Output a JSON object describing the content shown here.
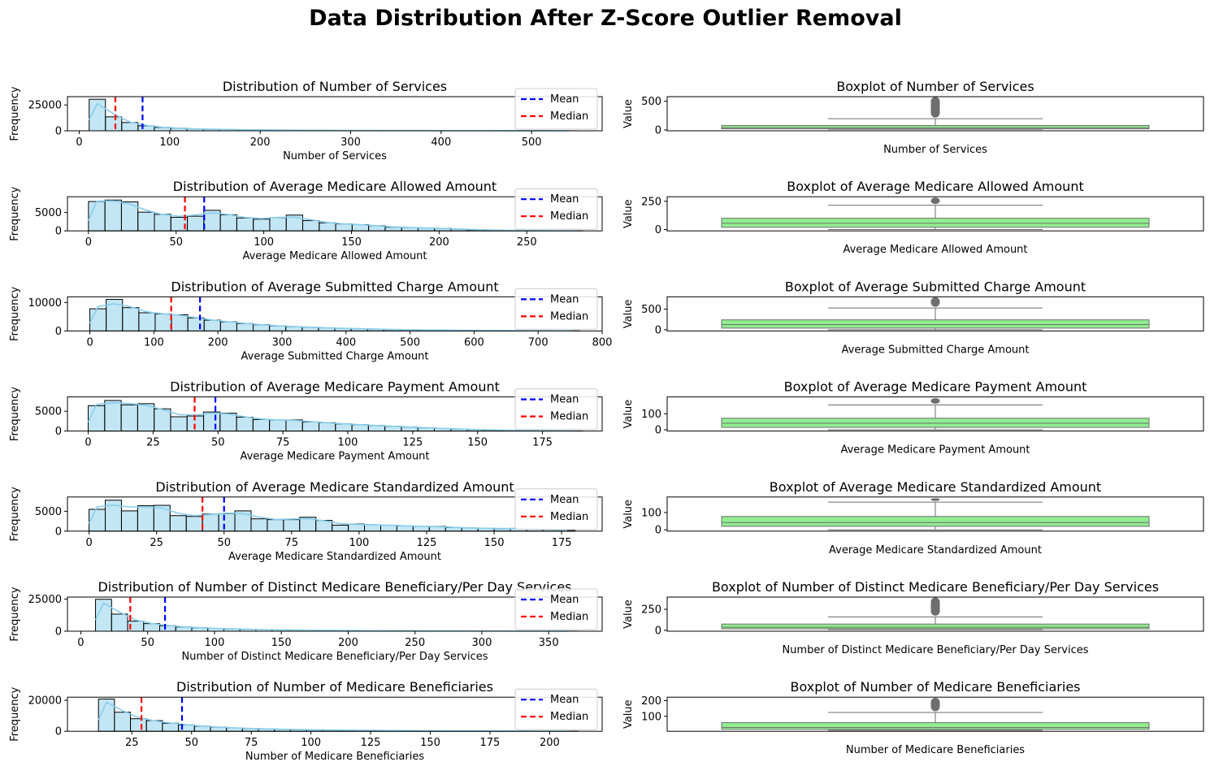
{
  "figure": {
    "title": "Data Distribution After Z-Score Outlier Removal"
  },
  "colors": {
    "hist_fill": "#87ceeb",
    "kde_line": "#87ceeb",
    "mean_line": "#0000ff",
    "median_line": "#ff0000",
    "box_fill": "#90ee90",
    "box_edge": "#6e6e6e",
    "flier": "#6e6e6e"
  },
  "legend": {
    "mean": "Mean",
    "median": "Median"
  },
  "chart_data": [
    {
      "type": "bar",
      "title": "Distribution of Number of Services",
      "xlabel": "Number of Services",
      "ylabel": "Frequency",
      "xlim": [
        -13,
        578
      ],
      "ylim": [
        0,
        33000
      ],
      "xticks": [
        0,
        100,
        200,
        300,
        400,
        500
      ],
      "yticks": [
        0,
        25000
      ],
      "bins": {
        "start": 11,
        "width": 18,
        "counts": [
          30500,
          13500,
          8000,
          4800,
          3300,
          2500,
          1900,
          1500,
          1200,
          1000,
          850,
          700,
          600,
          500,
          450,
          400,
          350,
          300,
          270,
          240,
          210,
          190,
          170,
          150,
          130,
          110,
          100,
          90,
          80,
          60
        ]
      },
      "mean": 70,
      "median": 40,
      "legend": "upper-right",
      "box": {
        "title": "Boxplot of Number of Services",
        "xlabel": "Number of Services",
        "ylabel": "Value",
        "yticks": [
          0,
          500
        ],
        "ylim": [
          -15,
          580
        ],
        "q1": 20,
        "median": 40,
        "q3": 78,
        "whisker_low": 11,
        "whisker_high": 195,
        "flier_max": 570
      }
    },
    {
      "type": "bar",
      "title": "Distribution of Average Medicare Allowed Amount",
      "xlabel": "Average Medicare Allowed Amount",
      "ylabel": "Frequency",
      "xlim": [
        -12,
        293
      ],
      "ylim": [
        0,
        9300
      ],
      "xticks": [
        0,
        50,
        100,
        150,
        200,
        250
      ],
      "yticks": [
        0,
        5000
      ],
      "bins": {
        "start": 0,
        "width": 9.4,
        "counts": [
          8000,
          8400,
          7900,
          5100,
          4500,
          3700,
          4000,
          5600,
          4400,
          3500,
          3200,
          3600,
          4300,
          2800,
          2200,
          1900,
          1700,
          1400,
          1000,
          900,
          800,
          700,
          500,
          300,
          200,
          150,
          100,
          60,
          40,
          20
        ]
      },
      "mean": 66,
      "median": 55,
      "legend": "upper-right",
      "box": {
        "title": "Boxplot of Average Medicare Allowed Amount",
        "xlabel": "Average Medicare Allowed Amount",
        "ylabel": "Value",
        "yticks": [
          0,
          250
        ],
        "ylim": [
          -12,
          290
        ],
        "q1": 20,
        "median": 55,
        "q3": 100,
        "whisker_low": 0,
        "whisker_high": 215,
        "flier_max": 280
      }
    },
    {
      "type": "bar",
      "title": "Distribution of Average Submitted Charge Amount",
      "xlabel": "Average Submitted Charge Amount",
      "ylabel": "Frequency",
      "xlim": [
        -35,
        800
      ],
      "ylim": [
        0,
        12000
      ],
      "xticks": [
        0,
        100,
        200,
        300,
        400,
        500,
        600,
        700,
        800
      ],
      "yticks": [
        0,
        10000
      ],
      "bins": {
        "start": 0,
        "width": 25.5,
        "counts": [
          7800,
          11100,
          8200,
          6400,
          6000,
          5700,
          4600,
          3800,
          3200,
          2600,
          2200,
          1800,
          1500,
          1300,
          1100,
          950,
          800,
          650,
          500,
          420,
          350,
          300,
          250,
          200,
          160,
          130,
          100,
          80,
          60,
          40
        ]
      },
      "mean": 172,
      "median": 127,
      "legend": "upper-right",
      "box": {
        "title": "Boxplot of Average Submitted Charge Amount",
        "xlabel": "Average Submitted Charge Amount",
        "ylabel": "Value",
        "yticks": [
          0,
          500
        ],
        "ylim": [
          -30,
          800
        ],
        "q1": 40,
        "median": 127,
        "q3": 240,
        "whisker_low": 0,
        "whisker_high": 530,
        "flier_max": 780
      }
    },
    {
      "type": "bar",
      "title": "Distribution of Average Medicare Payment Amount",
      "xlabel": "Average Medicare Payment Amount",
      "ylabel": "Frequency",
      "xlim": [
        -8,
        198
      ],
      "ylim": [
        0,
        8600
      ],
      "xticks": [
        0,
        25,
        50,
        75,
        100,
        125,
        150,
        175
      ],
      "yticks": [
        0,
        5000
      ],
      "bins": {
        "start": 0,
        "width": 6.35,
        "counts": [
          6400,
          7700,
          6600,
          6900,
          5600,
          3600,
          3800,
          4800,
          4500,
          3500,
          2900,
          2800,
          2800,
          2300,
          2100,
          1800,
          1600,
          1400,
          1200,
          1000,
          800,
          650,
          500,
          380,
          300,
          220,
          160,
          110,
          70,
          40
        ]
      },
      "mean": 49,
      "median": 41,
      "legend": "upper-right",
      "box": {
        "title": "Boxplot of Average Medicare Payment Amount",
        "xlabel": "Average Medicare Payment Amount",
        "ylabel": "Value",
        "yticks": [
          0,
          100
        ],
        "ylim": [
          -8,
          205
        ],
        "q1": 15,
        "median": 41,
        "q3": 72,
        "whisker_low": 0,
        "whisker_high": 155,
        "flier_max": 195
      }
    },
    {
      "type": "bar",
      "title": "Distribution of Average Medicare Standardized Amount",
      "xlabel": "Average Medicare Standardized Amount",
      "ylabel": "Frequency",
      "xlim": [
        -8,
        190
      ],
      "ylim": [
        0,
        8600
      ],
      "xticks": [
        0,
        25,
        50,
        75,
        100,
        125,
        150,
        175
      ],
      "yticks": [
        0,
        5000
      ],
      "bins": {
        "start": 0,
        "width": 6.0,
        "counts": [
          5500,
          7800,
          5100,
          6400,
          6500,
          3900,
          3700,
          4300,
          4400,
          5100,
          3100,
          2900,
          2900,
          3500,
          2700,
          1500,
          1800,
          1600,
          1500,
          1300,
          1200,
          1200,
          900,
          800,
          700,
          600,
          700,
          500,
          400,
          150
        ]
      },
      "mean": 50,
      "median": 42,
      "legend": "upper-right",
      "box": {
        "title": "Boxplot of Average Medicare Standardized Amount",
        "xlabel": "Average Medicare Standardized Amount",
        "ylabel": "Value",
        "yticks": [
          0,
          100
        ],
        "ylim": [
          -8,
          190
        ],
        "q1": 20,
        "median": 42,
        "q3": 77,
        "whisker_low": 0,
        "whisker_high": 160,
        "flier_max": 180
      }
    },
    {
      "type": "bar",
      "title": "Distribution of Number of Distinct Medicare Beneficiary/Per Day Services",
      "xlabel": "Number of Distinct Medicare Beneficiary/Per Day Services",
      "ylabel": "Frequency",
      "xlim": [
        -10,
        390
      ],
      "ylim": [
        0,
        26500
      ],
      "xticks": [
        0,
        50,
        100,
        150,
        200,
        250,
        300,
        350
      ],
      "yticks": [
        0,
        25000
      ],
      "bins": {
        "start": 11,
        "width": 12,
        "counts": [
          24800,
          13300,
          7800,
          5900,
          4300,
          3300,
          2700,
          2200,
          1800,
          1500,
          1250,
          1050,
          900,
          780,
          680,
          590,
          520,
          460,
          400,
          350,
          310,
          270,
          240,
          210,
          180,
          160,
          140,
          120,
          100,
          80
        ]
      },
      "mean": 63,
      "median": 37,
      "legend": "upper-right",
      "box": {
        "title": "Boxplot of Number of Distinct Medicare Beneficiary/Per Day Services",
        "xlabel": "Number of Distinct Medicare Beneficiary/Per Day Services",
        "ylabel": "Value",
        "yticks": [
          0,
          250
        ],
        "ylim": [
          -10,
          395
        ],
        "q1": 18,
        "median": 37,
        "q3": 75,
        "whisker_low": 11,
        "whisker_high": 160,
        "flier_max": 385
      }
    },
    {
      "type": "bar",
      "title": "Distribution of Number of Medicare Beneficiaries",
      "xlabel": "Number of Medicare Beneficiaries",
      "ylabel": "Frequency",
      "xlim": [
        -2,
        222
      ],
      "ylim": [
        0,
        22000
      ],
      "xticks": [
        25,
        50,
        75,
        100,
        125,
        150,
        175,
        200
      ],
      "yticks": [
        0,
        20000
      ],
      "bins": {
        "start": 11,
        "width": 6.7,
        "counts": [
          20800,
          12300,
          8100,
          6900,
          5200,
          4100,
          3300,
          2700,
          2200,
          1800,
          1500,
          1300,
          1100,
          950,
          820,
          720,
          630,
          550,
          480,
          420,
          370,
          320,
          280,
          240,
          210,
          180,
          150,
          120,
          100,
          80
        ]
      },
      "mean": 46,
      "median": 29,
      "legend": "upper-right",
      "box": {
        "title": "Boxplot of Number of Medicare Beneficiaries",
        "xlabel": "Number of Medicare Beneficiaries",
        "ylabel": "Value",
        "yticks": [
          100,
          200
        ],
        "ylim": [
          5,
          222
        ],
        "q1": 18,
        "median": 29,
        "q3": 60,
        "whisker_low": 11,
        "whisker_high": 125,
        "flier_max": 215
      }
    }
  ]
}
